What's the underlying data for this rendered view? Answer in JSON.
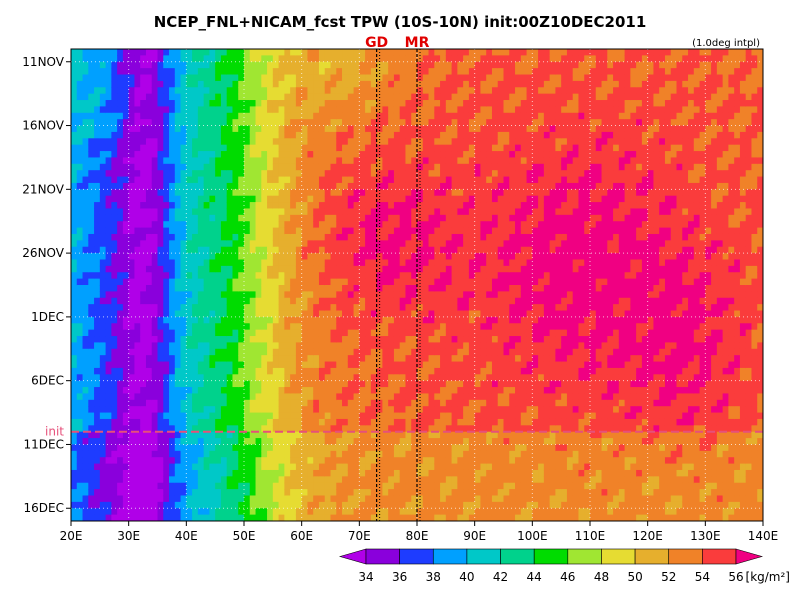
{
  "chart_data": {
    "type": "heatmap",
    "title": "NCEP_FNL+NICAM_fcst TPW (10S-10N) init:00Z10DEC2011",
    "note": "(1.0deg intpl)",
    "x_ticks": [
      "20E",
      "30E",
      "40E",
      "50E",
      "60E",
      "70E",
      "80E",
      "90E",
      "100E",
      "110E",
      "120E",
      "130E",
      "140E"
    ],
    "x_tick_values": [
      20,
      30,
      40,
      50,
      60,
      70,
      80,
      90,
      100,
      110,
      120,
      130,
      140
    ],
    "xlim": [
      20,
      140
    ],
    "y_ticks": [
      "11NOV",
      "16NOV",
      "21NOV",
      "26NOV",
      "1DEC",
      "6DEC",
      "11DEC",
      "16DEC"
    ],
    "y_tick_days": [
      0,
      5,
      10,
      15,
      20,
      25,
      30,
      35
    ],
    "ylim_days": [
      -1,
      36
    ],
    "init_label": "init",
    "init_day": 29,
    "markers": [
      {
        "label": "GD",
        "lon": 73,
        "color": "#e00000"
      },
      {
        "label": "MR",
        "lon": 80,
        "color": "#e00000"
      }
    ],
    "colorbar": {
      "unit": "[kg/m²]",
      "levels": [
        34,
        36,
        38,
        40,
        42,
        44,
        46,
        48,
        50,
        52,
        54,
        56
      ],
      "colors": [
        "#b000e8",
        "#8a00dc",
        "#1e3cff",
        "#00a0ff",
        "#00c8c8",
        "#00d28c",
        "#00dc00",
        "#a0e632",
        "#e6dc32",
        "#e6af2d",
        "#f08228",
        "#fa3c3c",
        "#f00082"
      ]
    },
    "grid": true
  }
}
